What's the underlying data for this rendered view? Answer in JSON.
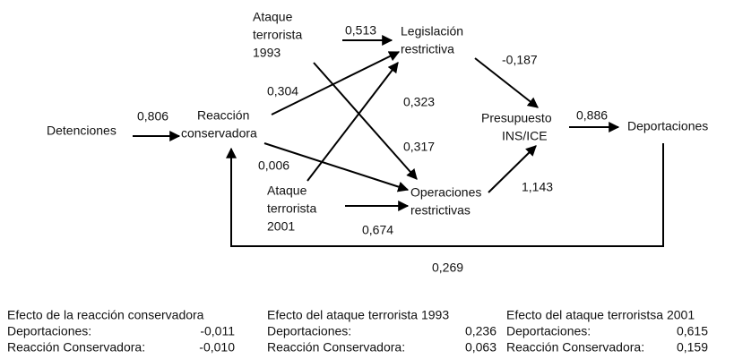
{
  "nodes": [
    {
      "lines": [
        "Detenciones"
      ]
    },
    {
      "lines": [
        "Reacción",
        "conservadora"
      ]
    },
    {
      "lines": [
        "Ataque",
        "terrorista",
        "1993"
      ]
    },
    {
      "lines": [
        "Legislación",
        "restrictiva"
      ]
    },
    {
      "lines": [
        "Presupuesto",
        "INS/ICE"
      ]
    },
    {
      "lines": [
        "Deportaciones"
      ]
    },
    {
      "lines": [
        "Ataque",
        "terrorista",
        "2001"
      ]
    },
    {
      "lines": [
        "Operaciones",
        "restrictivas"
      ]
    }
  ],
  "edges": [
    {
      "label": "0,806"
    },
    {
      "label": "0,513"
    },
    {
      "label": "0,304"
    },
    {
      "label": "0,323"
    },
    {
      "label": "0,317"
    },
    {
      "label": "0,006"
    },
    {
      "label": "0,674"
    },
    {
      "label": "-0,187"
    },
    {
      "label": "0,886"
    },
    {
      "label": "1,143"
    },
    {
      "label": "0,269"
    }
  ],
  "effects": [
    {
      "title": "Efecto de la reacción conservadora",
      "rows": [
        {
          "label": "Deportaciones:",
          "value": "-0,011"
        },
        {
          "label": "Reacción Conservadora:",
          "value": "-0,010"
        }
      ]
    },
    {
      "title": "Efecto del ataque terrorista 1993",
      "rows": [
        {
          "label": "Deportaciones:",
          "value": "0,236"
        },
        {
          "label": "Reacción Conservadora:",
          "value": "0,063"
        }
      ]
    },
    {
      "title": "Efecto del ataque terroristsa 2001",
      "rows": [
        {
          "label": "Deportaciones:",
          "value": "0,615"
        },
        {
          "label": "Reacción Conservadora:",
          "value": "0,159"
        }
      ]
    }
  ]
}
